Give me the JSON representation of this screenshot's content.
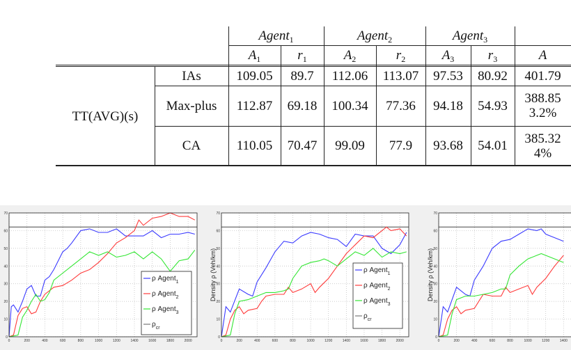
{
  "table": {
    "row_group_label": "TT(AVG)(s)",
    "agent_headers": [
      {
        "base": "Agent",
        "sub": "1"
      },
      {
        "base": "Agent",
        "sub": "2"
      },
      {
        "base": "Agent",
        "sub": "3"
      }
    ],
    "sub_headers": [
      {
        "base": "A",
        "sub": "1"
      },
      {
        "base": "r",
        "sub": "1"
      },
      {
        "base": "A",
        "sub": "2"
      },
      {
        "base": "r",
        "sub": "2"
      },
      {
        "base": "A",
        "sub": "3"
      },
      {
        "base": "r",
        "sub": "3"
      },
      {
        "base": "A",
        "sub": ""
      }
    ],
    "rows": [
      {
        "method": "IAs",
        "values": [
          "109.05",
          "89.7",
          "112.06",
          "113.07",
          "97.53",
          "80.92"
        ],
        "total": "401.79",
        "improvement": ""
      },
      {
        "method": "Max-plus",
        "values": [
          "112.87",
          "69.18",
          "100.34",
          "77.36",
          "94.18",
          "54.93"
        ],
        "total": "388.85",
        "improvement": "3.2%"
      },
      {
        "method": "CA",
        "values": [
          "110.05",
          "70.47",
          "99.09",
          "77.9",
          "93.68",
          "54.01"
        ],
        "total": "385.32",
        "improvement": "4%"
      }
    ]
  },
  "colors": {
    "agent1": "#3a3aff",
    "agent2": "#ff3a3a",
    "agent3": "#33e633",
    "critical": "#777777"
  },
  "chart_data": [
    {
      "type": "line",
      "ylabel": "",
      "xlim": [
        0,
        2100
      ],
      "ylim": [
        0,
        70
      ],
      "xticks": [
        0,
        200,
        400,
        600,
        800,
        1000,
        1200,
        1400,
        1600,
        1800,
        2000
      ],
      "yticks": [
        0,
        10,
        20,
        30,
        40,
        50,
        60,
        70
      ],
      "grid": true,
      "legend": "bottom-right",
      "legend_entries": [
        {
          "base": "ρ Agent",
          "sub": "1"
        },
        {
          "base": "ρ Agent",
          "sub": "2"
        },
        {
          "base": "ρ Agent",
          "sub": "3"
        },
        {
          "base": "ρ",
          "sub": "cr"
        }
      ],
      "critical": 62,
      "series": [
        {
          "x": [
            0,
            25,
            50,
            100,
            150,
            200,
            250,
            300,
            350,
            400,
            450,
            500,
            600,
            650,
            700,
            800,
            900,
            1000,
            1100,
            1200,
            1300,
            1400,
            1500,
            1600,
            1700,
            1800,
            1900,
            2000,
            2075
          ],
          "y": [
            0,
            17,
            18,
            14,
            20,
            27,
            29,
            23,
            23,
            32,
            34,
            38,
            48,
            50,
            53,
            60,
            61,
            59,
            59,
            61,
            57,
            57,
            57,
            60,
            56,
            58,
            58,
            59,
            58
          ]
        },
        {
          "x": [
            0,
            50,
            100,
            150,
            200,
            250,
            300,
            350,
            400,
            500,
            600,
            700,
            800,
            900,
            1000,
            1100,
            1200,
            1300,
            1400,
            1450,
            1500,
            1600,
            1700,
            1800,
            1900,
            2000,
            2075
          ],
          "y": [
            0,
            1,
            12,
            16,
            17,
            13,
            14,
            20,
            24,
            28,
            29,
            32,
            36,
            38,
            42,
            47,
            53,
            56,
            60,
            66,
            63,
            67,
            68,
            70,
            68,
            68,
            66
          ]
        },
        {
          "x": [
            0,
            100,
            150,
            200,
            250,
            300,
            350,
            400,
            450,
            500,
            600,
            700,
            800,
            900,
            1000,
            1100,
            1200,
            1300,
            1400,
            1500,
            1600,
            1700,
            1800,
            1900,
            2000,
            2075
          ],
          "y": [
            0,
            1,
            11,
            15,
            20,
            24,
            20,
            21,
            25,
            32,
            36,
            40,
            44,
            48,
            46,
            48,
            45,
            46,
            48,
            44,
            48,
            44,
            37,
            43,
            44,
            49
          ]
        }
      ]
    },
    {
      "type": "line",
      "ylabel": "Density ρ (Veh/km)",
      "xlim": [
        0,
        2100
      ],
      "ylim": [
        0,
        70
      ],
      "xticks": [
        0,
        200,
        400,
        600,
        800,
        1000,
        1200,
        1400,
        1600,
        1800,
        2000
      ],
      "yticks": [
        0,
        10,
        20,
        30,
        40,
        50,
        60,
        70
      ],
      "grid": true,
      "legend": "bottom-right",
      "legend_entries": [
        {
          "base": "ρ Agent",
          "sub": "1"
        },
        {
          "base": "ρ Agent",
          "sub": "2"
        },
        {
          "base": "ρ Agent",
          "sub": "3"
        },
        {
          "base": "ρ",
          "sub": "cr"
        }
      ],
      "critical": 62,
      "series": [
        {
          "x": [
            0,
            50,
            100,
            200,
            300,
            350,
            400,
            500,
            600,
            700,
            800,
            900,
            1000,
            1100,
            1200,
            1300,
            1400,
            1500,
            1600,
            1700,
            1800,
            1900,
            2000,
            2075
          ],
          "y": [
            0,
            17,
            14,
            27,
            24,
            23,
            31,
            39,
            48,
            54,
            53,
            57,
            59,
            58,
            56,
            55,
            51,
            58,
            57,
            57,
            50,
            47,
            52,
            59
          ]
        },
        {
          "x": [
            0,
            50,
            100,
            150,
            200,
            250,
            300,
            400,
            450,
            500,
            600,
            700,
            750,
            800,
            900,
            1000,
            1050,
            1100,
            1200,
            1300,
            1400,
            1500,
            1600,
            1700,
            1800,
            1850,
            1900,
            2000,
            2075
          ],
          "y": [
            0,
            1,
            10,
            15,
            17,
            13,
            15,
            16,
            20,
            23,
            24,
            24,
            28,
            25,
            27,
            30,
            25,
            28,
            33,
            40,
            47,
            52,
            57,
            56,
            60,
            62,
            60,
            61,
            57
          ]
        },
        {
          "x": [
            0,
            100,
            150,
            200,
            300,
            400,
            500,
            600,
            700,
            750,
            800,
            900,
            1000,
            1100,
            1150,
            1200,
            1300,
            1400,
            1500,
            1600,
            1700,
            1800,
            1900,
            2000,
            2075
          ],
          "y": [
            0,
            1,
            13,
            20,
            21,
            23,
            25,
            25,
            26,
            27,
            33,
            40,
            42,
            43,
            44,
            43,
            40,
            44,
            48,
            46,
            50,
            45,
            48,
            47,
            48
          ]
        }
      ]
    },
    {
      "type": "line",
      "ylabel": "Density ρ (Veh/km)",
      "xlim": [
        0,
        2100
      ],
      "ylim": [
        0,
        70
      ],
      "xticks": [
        0,
        200,
        400,
        600,
        800,
        1000,
        1200,
        1400
      ],
      "yticks": [
        0,
        10,
        20,
        30,
        40,
        50,
        60,
        70
      ],
      "grid": true,
      "critical": 62,
      "series": [
        {
          "x": [
            0,
            50,
            100,
            200,
            300,
            350,
            400,
            500,
            600,
            700,
            800,
            900,
            1000,
            1100,
            1150,
            1200,
            1300,
            1400
          ],
          "y": [
            0,
            17,
            14,
            28,
            24,
            23,
            32,
            40,
            50,
            54,
            55,
            58,
            61,
            60,
            61,
            58,
            56,
            54
          ]
        },
        {
          "x": [
            0,
            50,
            100,
            150,
            200,
            250,
            300,
            400,
            450,
            500,
            600,
            700,
            750,
            800,
            900,
            1000,
            1050,
            1100,
            1200,
            1300,
            1400
          ],
          "y": [
            0,
            1,
            10,
            15,
            17,
            13,
            15,
            16,
            20,
            24,
            23,
            23,
            28,
            25,
            27,
            29,
            24,
            28,
            33,
            40,
            46
          ]
        },
        {
          "x": [
            0,
            100,
            150,
            200,
            300,
            400,
            500,
            600,
            700,
            750,
            800,
            900,
            1000,
            1100,
            1150,
            1300,
            1400
          ],
          "y": [
            0,
            1,
            13,
            21,
            23,
            23,
            24,
            25,
            27,
            27,
            35,
            40,
            44,
            46,
            47,
            44,
            42
          ]
        }
      ]
    }
  ]
}
